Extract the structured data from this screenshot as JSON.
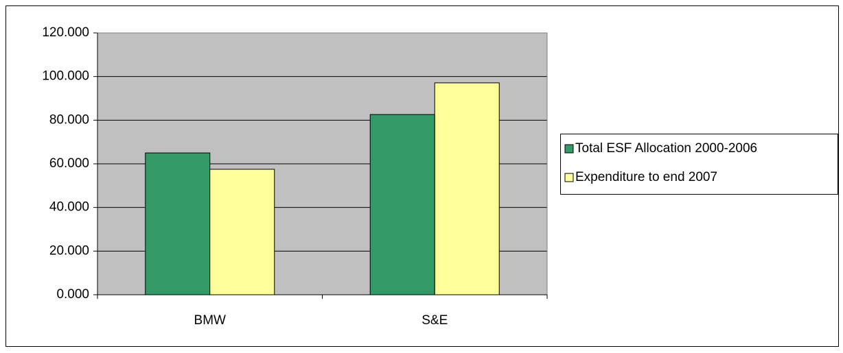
{
  "chart_data": {
    "type": "bar",
    "categories": [
      "BMW",
      "S&E"
    ],
    "series": [
      {
        "name": "Total ESF Allocation 2000-2006",
        "color": "#339966",
        "values": [
          65.0,
          82.6
        ]
      },
      {
        "name": "Expenditure to end 2007",
        "color": "#ffff99",
        "values": [
          57.5,
          97.1
        ]
      }
    ],
    "ylim": [
      0,
      120
    ],
    "yticks": [
      {
        "value": 0,
        "label": "0.000"
      },
      {
        "value": 20,
        "label": "20.000"
      },
      {
        "value": 40,
        "label": "40.000"
      },
      {
        "value": 60,
        "label": "60.000"
      },
      {
        "value": 80,
        "label": "80.000"
      },
      {
        "value": 100,
        "label": "100.000"
      },
      {
        "value": 120,
        "label": "120.000"
      }
    ],
    "grid": true,
    "plot_background": "#c0c0c0",
    "legend": "right"
  }
}
